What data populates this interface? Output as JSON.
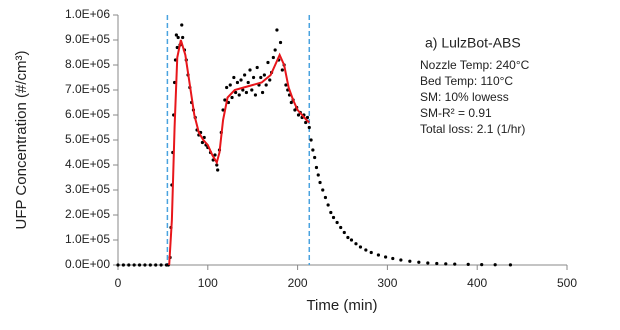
{
  "chart_data": {
    "type": "scatter",
    "xlabel": "Time (min)",
    "ylabel": "UFP Concentration (#/cm³)",
    "xlim": [
      0,
      500
    ],
    "xticks": [
      0,
      100,
      200,
      300,
      400,
      500
    ],
    "ylim": [
      0,
      1000000
    ],
    "yticks": [
      {
        "value": 0,
        "label": "0.0E+00"
      },
      {
        "value": 100000,
        "label": "1.0E+05"
      },
      {
        "value": 200000,
        "label": "2.0E+05"
      },
      {
        "value": 300000,
        "label": "3.0E+05"
      },
      {
        "value": 400000,
        "label": "4.0E+05"
      },
      {
        "value": 500000,
        "label": "5.0E+05"
      },
      {
        "value": 600000,
        "label": "6.0E+05"
      },
      {
        "value": 700000,
        "label": "7.0E+05"
      },
      {
        "value": 800000,
        "label": "8.0E+05"
      },
      {
        "value": 900000,
        "label": "9.0E+05"
      },
      {
        "value": 1000000,
        "label": "1.0E+06"
      }
    ],
    "grid": false,
    "vlines": {
      "x": [
        55,
        213
      ],
      "color": "#4aa3df"
    },
    "annotations": [
      "a) LulzBot-ABS",
      "Nozzle Temp: 240°C",
      "Bed Temp: 110°C",
      "SM: 10% lowess",
      "SM-R² = 0.91",
      "Total loss: 2.1 (1/hr)"
    ],
    "series": [
      {
        "type": "scatter",
        "color": "#000000",
        "x": [
          0,
          6,
          12,
          18,
          24,
          30,
          36,
          42,
          48,
          54,
          56,
          58,
          59,
          60,
          61,
          62,
          63,
          64,
          65,
          66,
          67,
          69,
          71,
          72,
          74,
          76,
          78,
          80,
          82,
          84,
          86,
          88,
          90,
          92,
          94,
          96,
          98,
          100,
          103,
          106,
          108,
          110,
          111,
          113,
          115,
          117,
          119,
          121,
          123,
          125,
          127,
          129,
          131,
          133,
          135,
          137,
          139,
          141,
          143,
          145,
          147,
          149,
          151,
          153,
          155,
          157,
          159,
          161,
          163,
          165,
          167,
          169,
          171,
          173,
          175,
          177,
          179,
          181,
          183,
          185,
          187,
          189,
          191,
          193,
          195,
          197,
          199,
          201,
          203,
          205,
          207,
          209,
          211,
          213,
          215,
          217,
          219,
          221,
          223,
          225,
          228,
          231,
          234,
          237,
          240,
          244,
          248,
          252,
          256,
          260,
          265,
          270,
          276,
          282,
          290,
          298,
          306,
          315,
          325,
          335,
          345,
          355,
          365,
          375,
          390,
          405,
          420,
          437
        ],
        "values": [
          0,
          0,
          0,
          0,
          0,
          0,
          0,
          0,
          0,
          0,
          0,
          30000,
          150000,
          320000,
          450000,
          600000,
          730000,
          820000,
          920000,
          870000,
          910000,
          880000,
          960000,
          910000,
          860000,
          820000,
          760000,
          710000,
          650000,
          620000,
          590000,
          540000,
          520000,
          530000,
          490000,
          510000,
          480000,
          470000,
          450000,
          420000,
          440000,
          400000,
          380000,
          460000,
          530000,
          620000,
          660000,
          710000,
          650000,
          720000,
          670000,
          750000,
          690000,
          730000,
          680000,
          740000,
          700000,
          760000,
          690000,
          730000,
          780000,
          700000,
          750000,
          680000,
          790000,
          720000,
          750000,
          690000,
          760000,
          720000,
          810000,
          740000,
          770000,
          830000,
          860000,
          940000,
          820000,
          890000,
          780000,
          800000,
          720000,
          700000,
          680000,
          650000,
          660000,
          620000,
          630000,
          600000,
          610000,
          590000,
          600000,
          570000,
          590000,
          550000,
          500000,
          460000,
          430000,
          390000,
          360000,
          330000,
          300000,
          270000,
          240000,
          210000,
          190000,
          170000,
          150000,
          130000,
          110000,
          100000,
          85000,
          72000,
          60000,
          50000,
          40000,
          32000,
          26000,
          20000,
          15000,
          11000,
          8000,
          6000,
          4500,
          3500,
          2500,
          1500,
          1000,
          500
        ]
      },
      {
        "type": "line",
        "color": "#e8161b",
        "x": [
          57,
          60,
          63,
          66,
          70,
          75,
          80,
          85,
          90,
          95,
          100,
          105,
          110,
          113,
          117,
          122,
          130,
          140,
          150,
          160,
          170,
          175,
          180,
          185,
          190,
          195,
          200,
          205,
          210,
          213
        ],
        "values": [
          0,
          180000,
          550000,
          830000,
          900000,
          840000,
          720000,
          600000,
          530000,
          500000,
          480000,
          440000,
          410000,
          450000,
          580000,
          670000,
          700000,
          710000,
          720000,
          730000,
          760000,
          800000,
          840000,
          800000,
          710000,
          660000,
          620000,
          600000,
          580000,
          570000
        ]
      }
    ]
  }
}
